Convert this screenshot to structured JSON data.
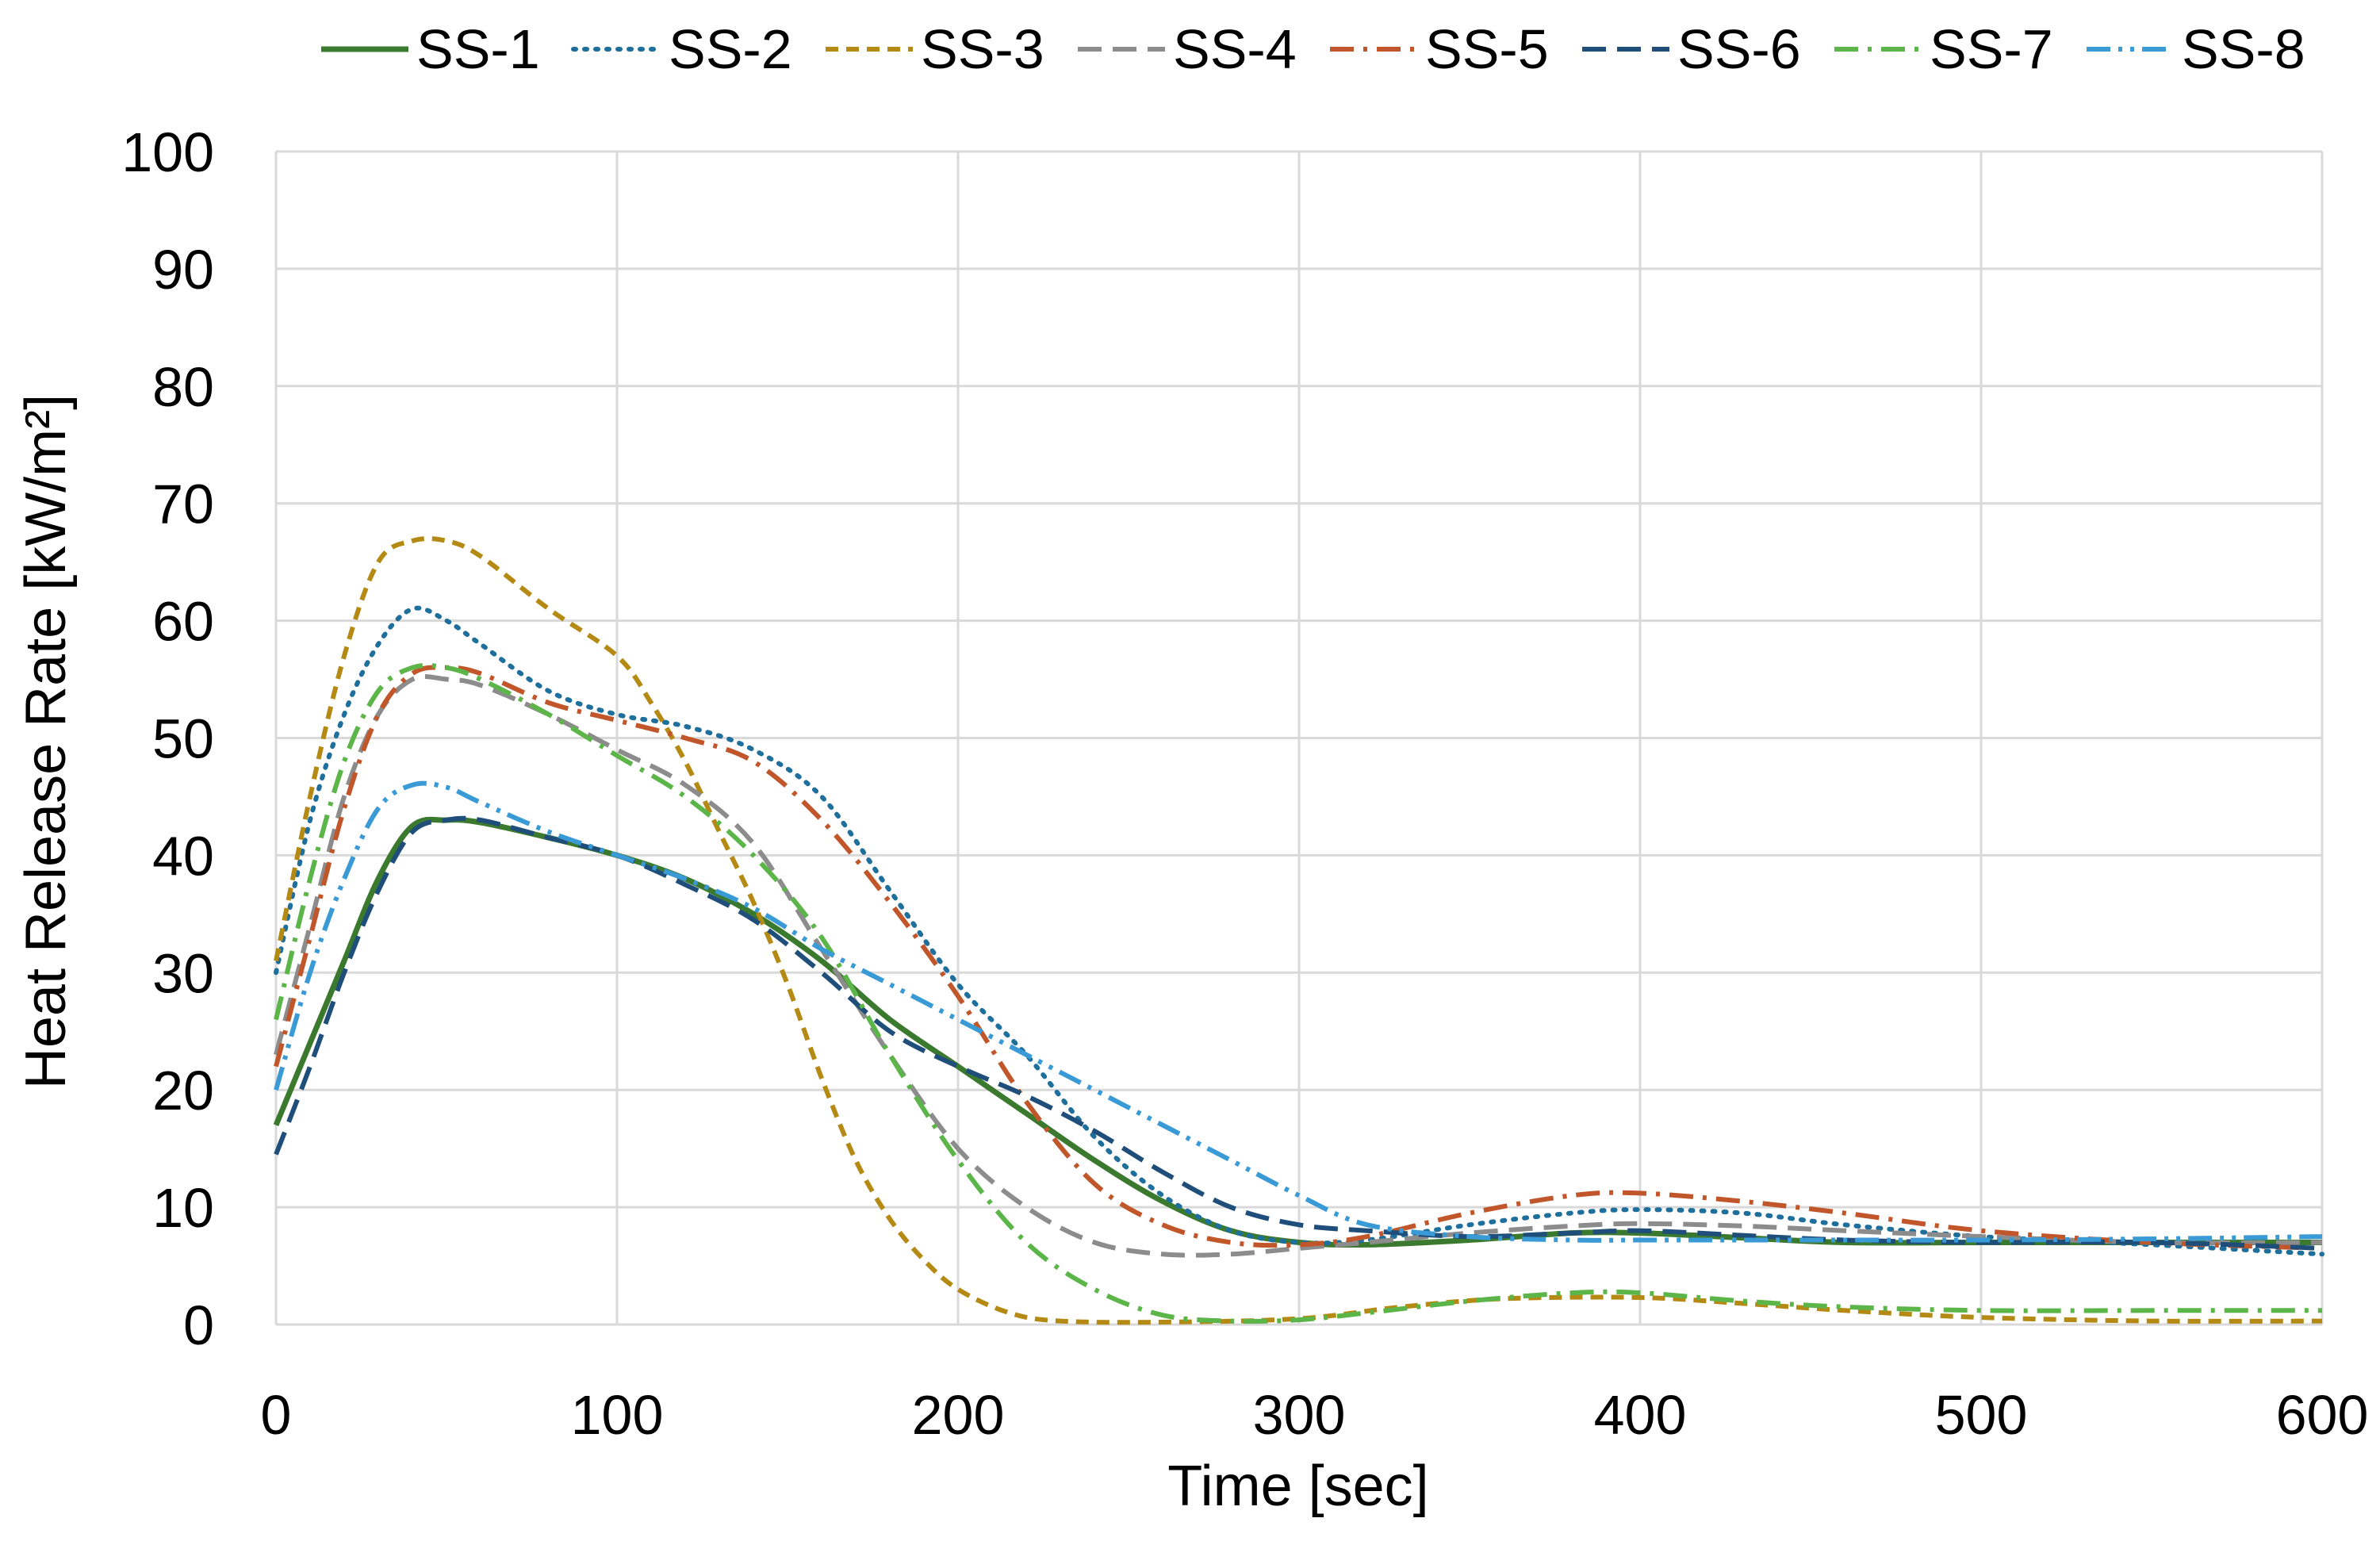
{
  "chart_data": {
    "type": "line",
    "title": "",
    "xlabel": "Time [sec]",
    "ylabel": "Heat Release Rate [kW/m²]",
    "xlim": [
      0,
      600
    ],
    "ylim": [
      0,
      100
    ],
    "xticks": [
      0,
      100,
      200,
      300,
      400,
      500,
      600
    ],
    "yticks": [
      0,
      10,
      20,
      30,
      40,
      50,
      60,
      70,
      80,
      90,
      100
    ],
    "grid": true,
    "legend_position": "top",
    "series": [
      {
        "name": "SS-1",
        "color": "#3b7a2e",
        "dash": "solid",
        "points": [
          [
            0,
            17
          ],
          [
            10,
            24
          ],
          [
            20,
            31
          ],
          [
            30,
            38
          ],
          [
            40,
            42.5
          ],
          [
            50,
            43
          ],
          [
            60,
            42.8
          ],
          [
            80,
            41.5
          ],
          [
            100,
            40
          ],
          [
            120,
            38
          ],
          [
            140,
            35
          ],
          [
            160,
            31
          ],
          [
            180,
            26
          ],
          [
            200,
            22
          ],
          [
            220,
            18
          ],
          [
            240,
            14
          ],
          [
            260,
            10.5
          ],
          [
            280,
            8
          ],
          [
            300,
            7
          ],
          [
            320,
            6.8
          ],
          [
            350,
            7.2
          ],
          [
            380,
            7.8
          ],
          [
            400,
            7.8
          ],
          [
            430,
            7.4
          ],
          [
            460,
            7
          ],
          [
            500,
            7
          ],
          [
            550,
            7
          ],
          [
            600,
            7
          ]
        ]
      },
      {
        "name": "SS-2",
        "color": "#1f6f9c",
        "dash": "dot",
        "points": [
          [
            0,
            30
          ],
          [
            10,
            43
          ],
          [
            20,
            52
          ],
          [
            30,
            58
          ],
          [
            40,
            61
          ],
          [
            50,
            60
          ],
          [
            60,
            58
          ],
          [
            80,
            54
          ],
          [
            100,
            52
          ],
          [
            120,
            51
          ],
          [
            140,
            49
          ],
          [
            160,
            45
          ],
          [
            180,
            37
          ],
          [
            200,
            29
          ],
          [
            220,
            23
          ],
          [
            240,
            16
          ],
          [
            260,
            11
          ],
          [
            280,
            8
          ],
          [
            300,
            7
          ],
          [
            320,
            7.2
          ],
          [
            350,
            8.5
          ],
          [
            380,
            9.5
          ],
          [
            400,
            9.8
          ],
          [
            430,
            9.5
          ],
          [
            460,
            8.5
          ],
          [
            500,
            7.5
          ],
          [
            550,
            6.8
          ],
          [
            600,
            6
          ]
        ]
      },
      {
        "name": "SS-3",
        "color": "#b58a14",
        "dash": "dash",
        "points": [
          [
            0,
            31
          ],
          [
            10,
            45
          ],
          [
            20,
            57
          ],
          [
            30,
            65
          ],
          [
            40,
            66.8
          ],
          [
            50,
            66.8
          ],
          [
            60,
            65.5
          ],
          [
            80,
            61
          ],
          [
            100,
            57
          ],
          [
            110,
            53
          ],
          [
            120,
            48
          ],
          [
            130,
            42
          ],
          [
            140,
            36
          ],
          [
            150,
            29
          ],
          [
            160,
            21
          ],
          [
            170,
            14
          ],
          [
            180,
            9
          ],
          [
            190,
            5.5
          ],
          [
            200,
            3
          ],
          [
            215,
            1
          ],
          [
            230,
            0.3
          ],
          [
            260,
            0.2
          ],
          [
            300,
            0.5
          ],
          [
            330,
            1.5
          ],
          [
            360,
            2.2
          ],
          [
            400,
            2.3
          ],
          [
            430,
            1.8
          ],
          [
            460,
            1.2
          ],
          [
            500,
            0.6
          ],
          [
            550,
            0.3
          ],
          [
            600,
            0.3
          ]
        ]
      },
      {
        "name": "SS-4",
        "color": "#8c8c8c",
        "dash": "longdash",
        "points": [
          [
            0,
            23
          ],
          [
            10,
            34
          ],
          [
            20,
            45
          ],
          [
            30,
            52
          ],
          [
            40,
            55
          ],
          [
            50,
            55
          ],
          [
            60,
            54.5
          ],
          [
            80,
            52
          ],
          [
            100,
            49
          ],
          [
            120,
            46
          ],
          [
            140,
            41
          ],
          [
            160,
            32
          ],
          [
            180,
            23
          ],
          [
            200,
            15
          ],
          [
            220,
            10
          ],
          [
            240,
            7
          ],
          [
            260,
            6
          ],
          [
            280,
            6
          ],
          [
            300,
            6.5
          ],
          [
            320,
            7
          ],
          [
            350,
            7.8
          ],
          [
            380,
            8.4
          ],
          [
            400,
            8.6
          ],
          [
            430,
            8.4
          ],
          [
            460,
            8
          ],
          [
            500,
            7.5
          ],
          [
            550,
            7
          ],
          [
            600,
            7
          ]
        ]
      },
      {
        "name": "SS-5",
        "color": "#c0562a",
        "dash": "dashdot",
        "points": [
          [
            0,
            22
          ],
          [
            10,
            33
          ],
          [
            20,
            44
          ],
          [
            30,
            52
          ],
          [
            40,
            55.5
          ],
          [
            50,
            56
          ],
          [
            60,
            55.5
          ],
          [
            80,
            53
          ],
          [
            100,
            51.5
          ],
          [
            120,
            50
          ],
          [
            140,
            48
          ],
          [
            160,
            43
          ],
          [
            180,
            36
          ],
          [
            200,
            28
          ],
          [
            220,
            19
          ],
          [
            240,
            12
          ],
          [
            260,
            8.5
          ],
          [
            280,
            7
          ],
          [
            300,
            6.8
          ],
          [
            320,
            7.5
          ],
          [
            350,
            9.5
          ],
          [
            380,
            11
          ],
          [
            400,
            11.2
          ],
          [
            430,
            10.5
          ],
          [
            460,
            9.5
          ],
          [
            500,
            8
          ],
          [
            550,
            7
          ],
          [
            600,
            6.5
          ]
        ]
      },
      {
        "name": "SS-6",
        "color": "#1f4e7a",
        "dash": "longdash",
        "points": [
          [
            0,
            14.5
          ],
          [
            10,
            22
          ],
          [
            20,
            30
          ],
          [
            30,
            37
          ],
          [
            40,
            42
          ],
          [
            50,
            43
          ],
          [
            60,
            43
          ],
          [
            80,
            41.5
          ],
          [
            100,
            40
          ],
          [
            120,
            37.5
          ],
          [
            140,
            34.5
          ],
          [
            160,
            30
          ],
          [
            180,
            25
          ],
          [
            200,
            22
          ],
          [
            220,
            19.5
          ],
          [
            240,
            16.5
          ],
          [
            260,
            13
          ],
          [
            280,
            10
          ],
          [
            300,
            8.5
          ],
          [
            320,
            8
          ],
          [
            350,
            7.5
          ],
          [
            380,
            7.8
          ],
          [
            400,
            8
          ],
          [
            430,
            7.6
          ],
          [
            460,
            7.2
          ],
          [
            500,
            7
          ],
          [
            550,
            7
          ],
          [
            600,
            6.5
          ]
        ]
      },
      {
        "name": "SS-7",
        "color": "#5cb548",
        "dash": "dashdot",
        "points": [
          [
            0,
            26
          ],
          [
            10,
            38
          ],
          [
            20,
            48
          ],
          [
            30,
            54
          ],
          [
            40,
            56
          ],
          [
            50,
            56
          ],
          [
            60,
            55
          ],
          [
            80,
            52
          ],
          [
            100,
            48.5
          ],
          [
            120,
            45
          ],
          [
            140,
            40
          ],
          [
            160,
            33
          ],
          [
            180,
            23
          ],
          [
            200,
            14
          ],
          [
            220,
            7
          ],
          [
            240,
            3
          ],
          [
            260,
            0.8
          ],
          [
            280,
            0.3
          ],
          [
            300,
            0.4
          ],
          [
            320,
            1
          ],
          [
            350,
            2
          ],
          [
            380,
            2.7
          ],
          [
            400,
            2.7
          ],
          [
            430,
            2
          ],
          [
            460,
            1.5
          ],
          [
            500,
            1.2
          ],
          [
            550,
            1.2
          ],
          [
            600,
            1.2
          ]
        ]
      },
      {
        "name": "SS-8",
        "color": "#3a9ad6",
        "dash": "dashdotdot",
        "points": [
          [
            0,
            20
          ],
          [
            10,
            30
          ],
          [
            20,
            38
          ],
          [
            30,
            44
          ],
          [
            40,
            46
          ],
          [
            50,
            45.8
          ],
          [
            60,
            44.5
          ],
          [
            80,
            42
          ],
          [
            100,
            40
          ],
          [
            120,
            38
          ],
          [
            140,
            35.5
          ],
          [
            160,
            32
          ],
          [
            180,
            29
          ],
          [
            200,
            26
          ],
          [
            220,
            23
          ],
          [
            240,
            20
          ],
          [
            260,
            17
          ],
          [
            280,
            14
          ],
          [
            300,
            11
          ],
          [
            320,
            8.5
          ],
          [
            350,
            7.5
          ],
          [
            380,
            7.2
          ],
          [
            400,
            7.2
          ],
          [
            430,
            7.2
          ],
          [
            460,
            7.2
          ],
          [
            500,
            7.2
          ],
          [
            550,
            7.3
          ],
          [
            600,
            7.5
          ]
        ]
      }
    ]
  }
}
